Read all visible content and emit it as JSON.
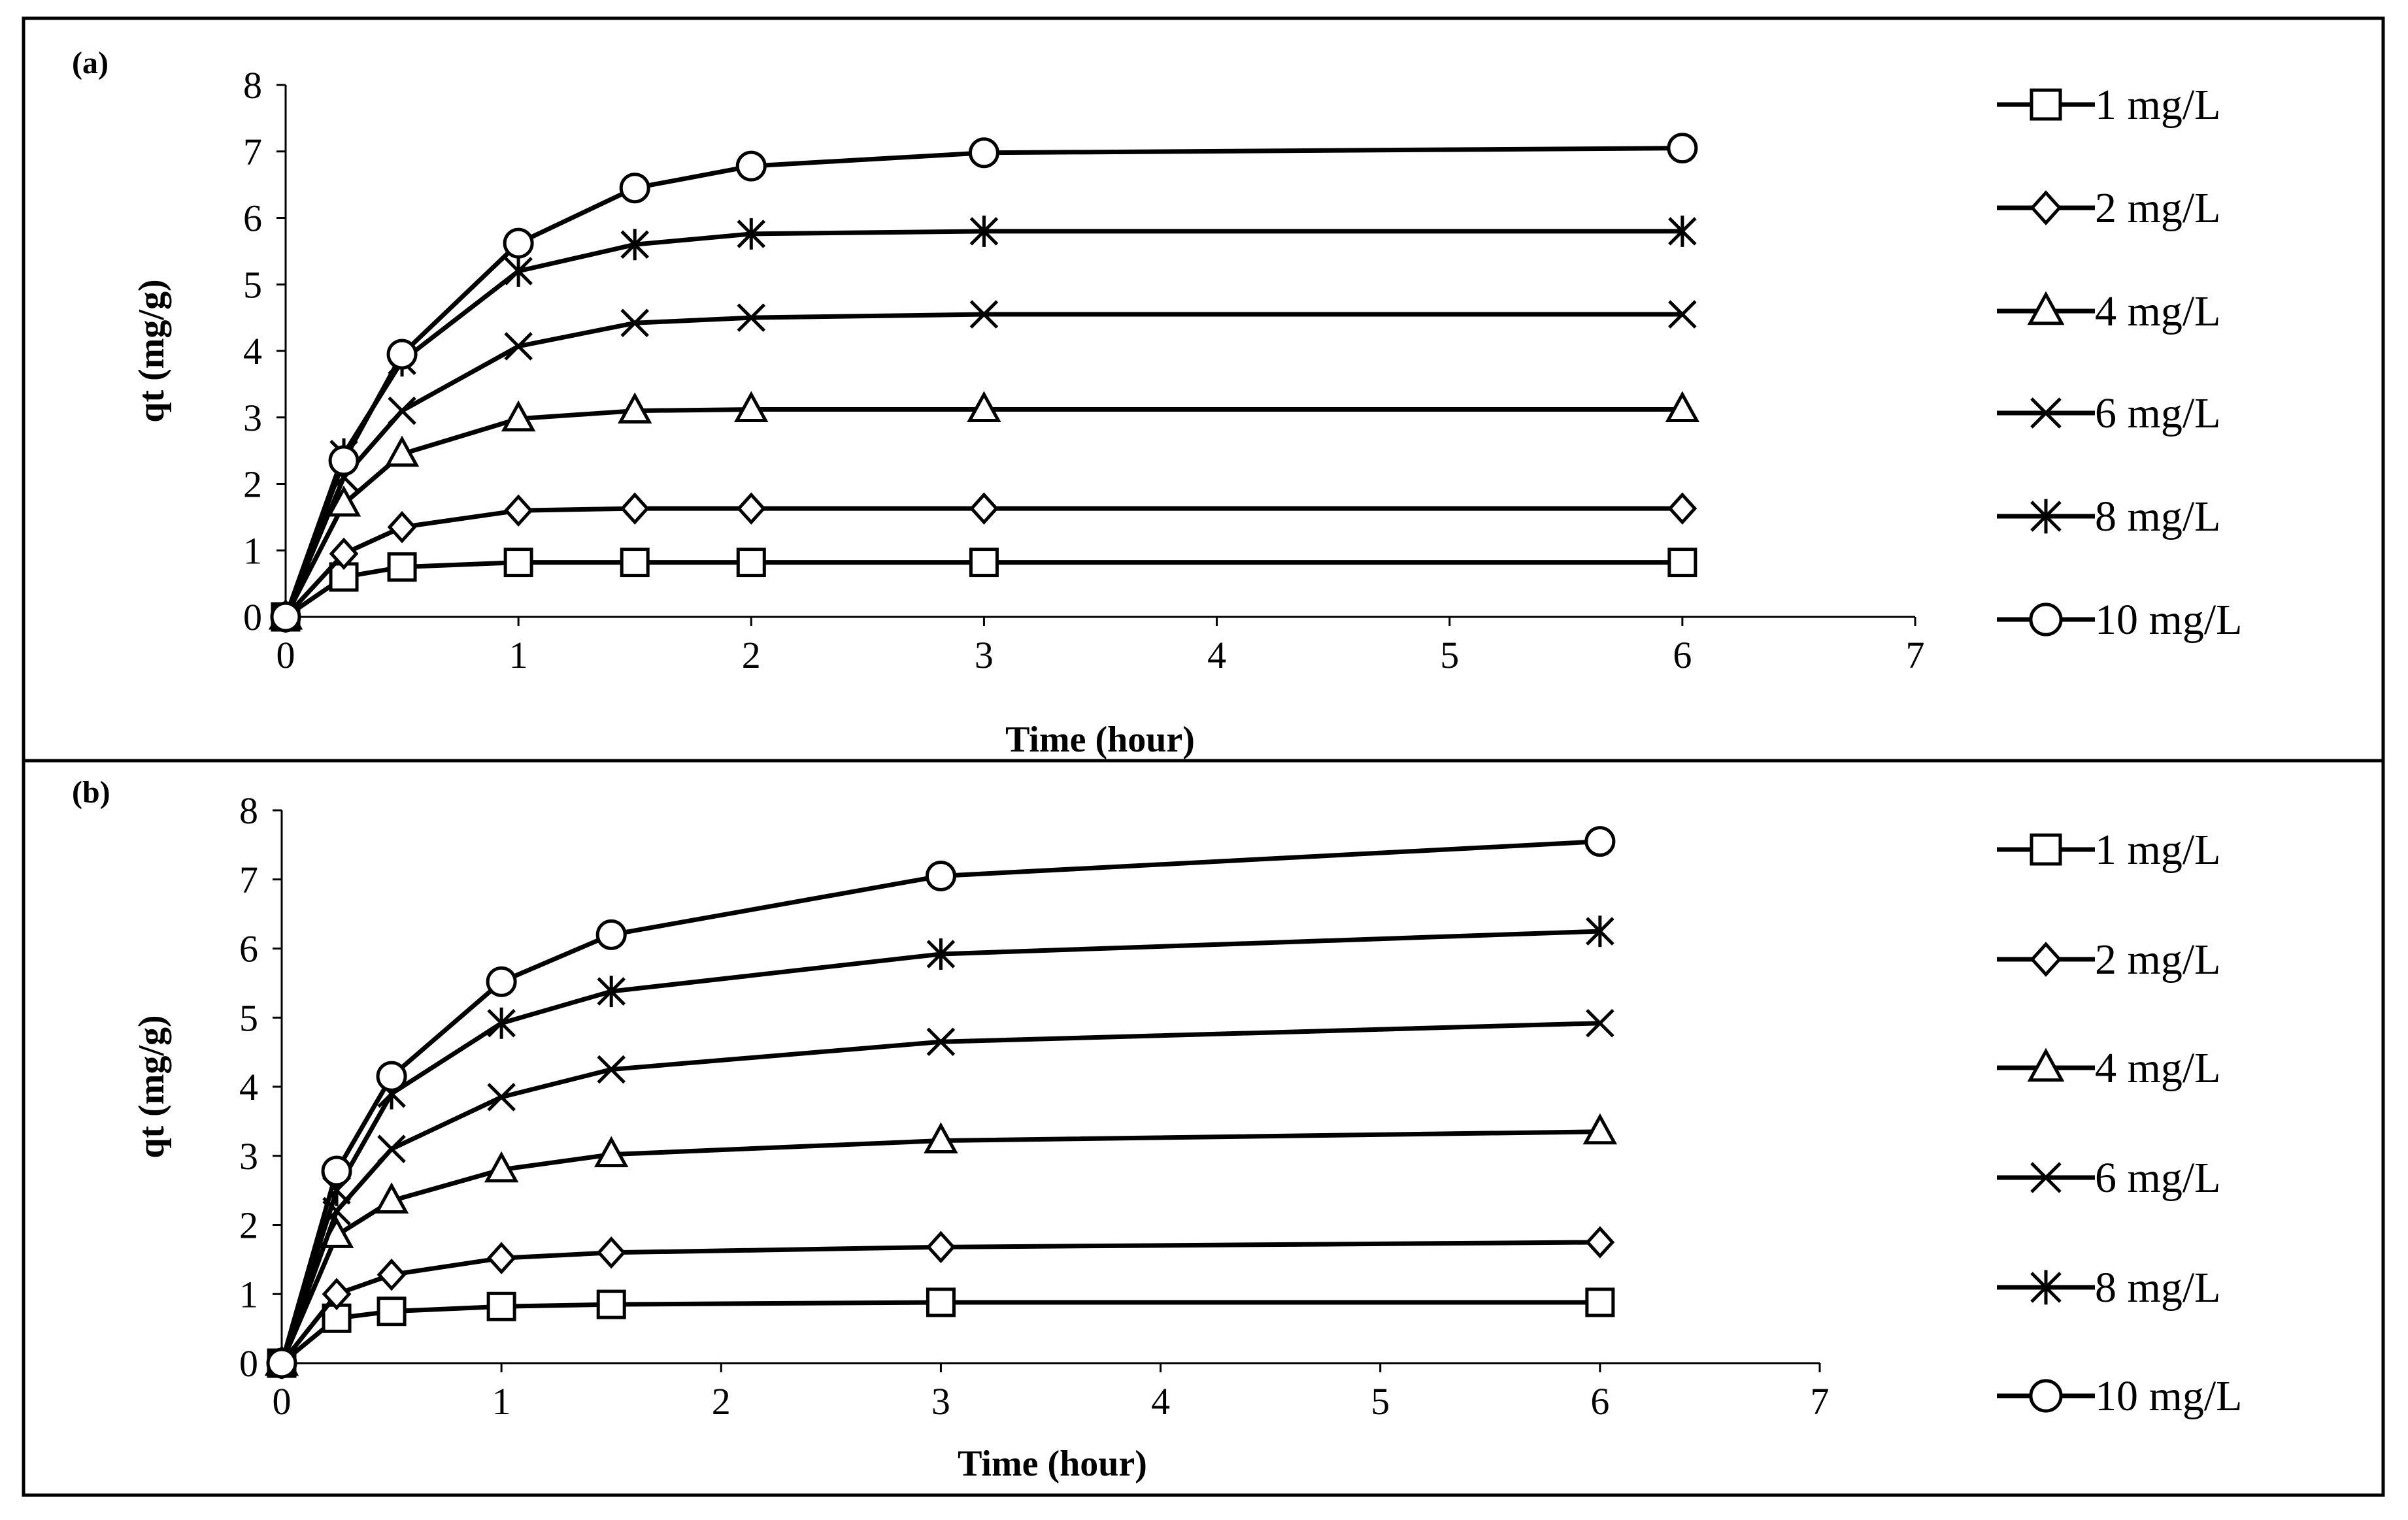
{
  "chart_data": [
    {
      "type": "line",
      "panel_label": "(a)",
      "xlabel": "Time (hour)",
      "ylabel": "qt (mg/g)",
      "xlim": [
        0,
        7
      ],
      "ylim": [
        0,
        8
      ],
      "x_ticks": [
        "0",
        "1",
        "2",
        "3",
        "4",
        "5",
        "6",
        "7"
      ],
      "y_ticks": [
        "0",
        "1",
        "2",
        "3",
        "4",
        "5",
        "6",
        "7",
        "8"
      ],
      "grid": false,
      "legend_position": "right",
      "x": [
        0,
        0.25,
        0.5,
        1,
        1.5,
        2,
        3,
        6
      ],
      "series": [
        {
          "name": "1 mg/L",
          "marker": "square",
          "values": [
            0,
            0.6,
            0.75,
            0.82,
            0.82,
            0.82,
            0.82,
            0.82
          ]
        },
        {
          "name": "2 mg/L",
          "marker": "diamond",
          "values": [
            0,
            0.95,
            1.35,
            1.6,
            1.63,
            1.63,
            1.63,
            1.63
          ]
        },
        {
          "name": "4 mg/L",
          "marker": "triangle",
          "values": [
            0,
            1.7,
            2.45,
            2.98,
            3.1,
            3.12,
            3.12,
            3.12
          ]
        },
        {
          "name": "6 mg/L",
          "marker": "x",
          "values": [
            0,
            2.1,
            3.1,
            4.07,
            4.42,
            4.5,
            4.55,
            4.55
          ]
        },
        {
          "name": "8 mg/L",
          "marker": "star",
          "values": [
            0,
            2.45,
            3.85,
            5.2,
            5.6,
            5.76,
            5.8,
            5.8
          ]
        },
        {
          "name": "10 mg/L",
          "marker": "circle",
          "values": [
            0,
            2.35,
            3.95,
            5.62,
            6.45,
            6.78,
            6.98,
            7.05
          ]
        }
      ]
    },
    {
      "type": "line",
      "panel_label": "(b)",
      "xlabel": "Time (hour)",
      "ylabel": "qt (mg/g)",
      "xlim": [
        0,
        7
      ],
      "ylim": [
        0,
        8
      ],
      "x_ticks": [
        "0",
        "1",
        "2",
        "3",
        "4",
        "5",
        "6",
        "7"
      ],
      "y_ticks": [
        "0",
        "1",
        "2",
        "3",
        "4",
        "5",
        "6",
        "7",
        "8"
      ],
      "grid": false,
      "legend_position": "right",
      "x": [
        0,
        0.25,
        0.5,
        1,
        1.5,
        3,
        6
      ],
      "series": [
        {
          "name": "1 mg/L",
          "marker": "square",
          "values": [
            0,
            0.65,
            0.75,
            0.82,
            0.85,
            0.88,
            0.88
          ]
        },
        {
          "name": "2 mg/L",
          "marker": "diamond",
          "values": [
            0,
            1.0,
            1.28,
            1.52,
            1.6,
            1.68,
            1.75
          ]
        },
        {
          "name": "4 mg/L",
          "marker": "triangle",
          "values": [
            0,
            1.85,
            2.35,
            2.8,
            3.02,
            3.22,
            3.35
          ]
        },
        {
          "name": "6 mg/L",
          "marker": "x",
          "values": [
            0,
            2.2,
            3.1,
            3.85,
            4.25,
            4.65,
            4.92
          ]
        },
        {
          "name": "8 mg/L",
          "marker": "star",
          "values": [
            0,
            2.5,
            3.9,
            4.92,
            5.38,
            5.92,
            6.25
          ]
        },
        {
          "name": "10 mg/L",
          "marker": "circle",
          "values": [
            0,
            2.78,
            4.15,
            5.52,
            6.2,
            7.05,
            7.55
          ]
        }
      ]
    }
  ]
}
